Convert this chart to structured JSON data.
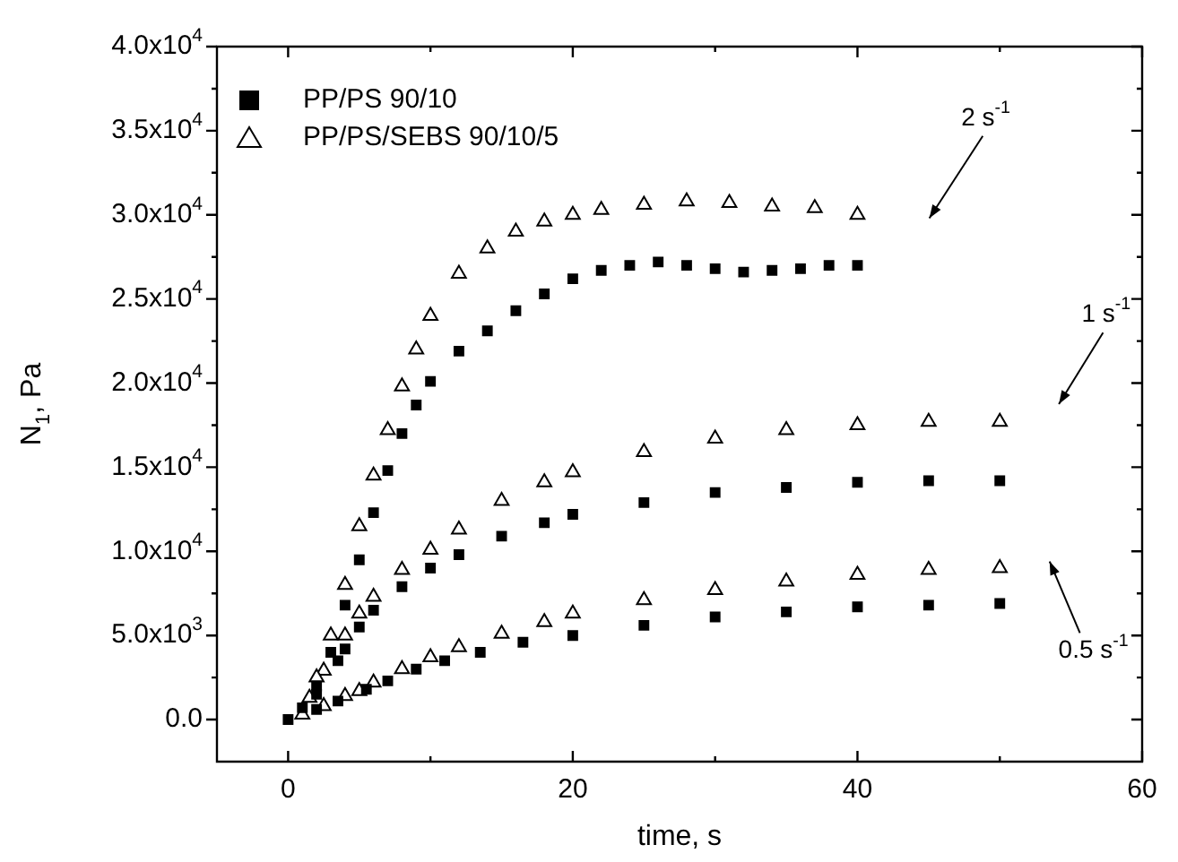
{
  "chart_data": {
    "type": "scatter",
    "xlabel": "time, s",
    "ylabel": "N$_{1}$, Pa",
    "legend": "top left",
    "xlim": [
      -5,
      60
    ],
    "xticks": [
      0,
      {
        "value": 10,
        "label": null
      },
      20,
      {
        "value": 30,
        "label": null
      },
      40,
      {
        "value": 50,
        "label": null
      },
      60
    ],
    "ylim": [
      -2500,
      40000
    ],
    "yticks": [
      {
        "value": 0,
        "label": "0.0"
      },
      {
        "value": 2500,
        "label": null
      },
      {
        "value": 5000,
        "label": "5.0x10$^{3}$"
      },
      {
        "value": 7500,
        "label": null
      },
      {
        "value": 10000,
        "label": "1.0x10$^{4}$"
      },
      {
        "value": 12500,
        "label": null
      },
      {
        "value": 15000,
        "label": "1.5x10$^{4}$"
      },
      {
        "value": 17500,
        "label": null
      },
      {
        "value": 20000,
        "label": "2.0x10$^{4}$"
      },
      {
        "value": 22500,
        "label": null
      },
      {
        "value": 25000,
        "label": "2.5x10$^{4}$"
      },
      {
        "value": 27500,
        "label": null
      },
      {
        "value": 30000,
        "label": "3.0x10$^{4}$"
      },
      {
        "value": 32500,
        "label": null
      },
      {
        "value": 35000,
        "label": "3.5x10$^{4}$"
      },
      {
        "value": 37500,
        "label": null
      },
      {
        "value": 40000,
        "label": "4.0x10$^{4}$"
      }
    ],
    "series": [
      {
        "name": "PP/PS 90/10",
        "color": "#000000",
        "marker": "square",
        "x": [
          0,
          1,
          2,
          3,
          4,
          5,
          6,
          7,
          8,
          9,
          10,
          12,
          14,
          16,
          18,
          20,
          22,
          24,
          26,
          28,
          30,
          32,
          34,
          36,
          38,
          40
        ],
        "values": [
          0,
          700,
          2000,
          4000,
          6800,
          9500,
          12300,
          14800,
          17000,
          18700,
          20100,
          21900,
          23100,
          24300,
          25300,
          26200,
          26700,
          27000,
          27200,
          27000,
          26800,
          26600,
          26700,
          26800,
          27000,
          27000
        ]
      },
      {
        "name": "PP/PS/SEBS 90/10/5",
        "color": "#000000",
        "marker": "triangle",
        "x": [
          2,
          3,
          4,
          5,
          6,
          7,
          8,
          9,
          10,
          12,
          14,
          16,
          18,
          20,
          22,
          25,
          28,
          31,
          34,
          37,
          40
        ],
        "values": [
          2500,
          5000,
          8000,
          11500,
          14500,
          17200,
          19800,
          22000,
          24000,
          26500,
          28000,
          29000,
          29600,
          30000,
          30300,
          30600,
          30800,
          30700,
          30500,
          30400,
          30000
        ]
      },
      {
        "color": "#000000",
        "marker": "square",
        "x": [
          2,
          3.5,
          4,
          5,
          6,
          8,
          10,
          12,
          15,
          18,
          20,
          25,
          30,
          35,
          40,
          45,
          50
        ],
        "values": [
          1500,
          3500,
          4200,
          5500,
          6500,
          7900,
          9000,
          9800,
          10900,
          11700,
          12200,
          12900,
          13500,
          13800,
          14100,
          14200,
          14200
        ]
      },
      {
        "color": "#000000",
        "marker": "triangle",
        "x": [
          1.5,
          2.5,
          4,
          5,
          6,
          8,
          10,
          12,
          15,
          18,
          20,
          25,
          30,
          35,
          40,
          45,
          50
        ],
        "values": [
          1300,
          2900,
          5000,
          6300,
          7300,
          8900,
          10100,
          11300,
          13000,
          14100,
          14700,
          15900,
          16700,
          17200,
          17500,
          17700,
          17700
        ]
      },
      {
        "color": "#000000",
        "marker": "square",
        "x": [
          2,
          3.5,
          5.5,
          7,
          9,
          11,
          13.5,
          16.5,
          20,
          25,
          30,
          35,
          40,
          45,
          50
        ],
        "values": [
          600,
          1100,
          1800,
          2300,
          3000,
          3500,
          4000,
          4600,
          5000,
          5600,
          6100,
          6400,
          6700,
          6800,
          6900
        ]
      },
      {
        "color": "#000000",
        "marker": "triangle",
        "x": [
          1,
          2.5,
          4,
          5,
          6,
          8,
          10,
          12,
          15,
          18,
          20,
          25,
          30,
          35,
          40,
          45,
          50
        ],
        "values": [
          300,
          800,
          1400,
          1700,
          2200,
          3000,
          3700,
          4300,
          5100,
          5800,
          6300,
          7100,
          7700,
          8200,
          8600,
          8900,
          9000
        ]
      }
    ],
    "annotations": [
      "2 s$^{-1}$",
      "1 s$^{-1}$",
      "0.5 s$^{-1}$"
    ]
  }
}
